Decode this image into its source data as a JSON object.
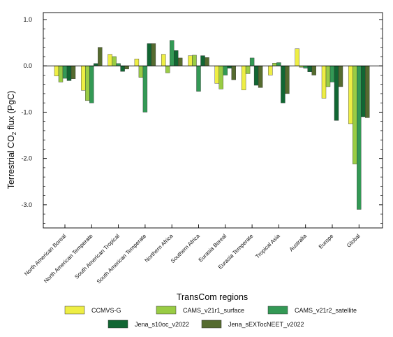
{
  "chart_data": {
    "type": "bar",
    "xlabel": "TransCom regions",
    "ylabel_main": "Terrestrial CO",
    "ylabel_sub": "2",
    "ylabel_tail": " flux (PgC)",
    "ylim": [
      -3.5,
      1.15
    ],
    "yticks": [
      1.0,
      0.0,
      -1.0,
      -2.0,
      -3.0
    ],
    "ytick_labels": [
      "1.0",
      "0.0",
      "-1.0",
      "-2.0",
      "-3.0"
    ],
    "grid": false,
    "legend_position": "bottom",
    "categories": [
      "North American Boreal",
      "North American Temperate",
      "South American Tropical",
      "South American Temperate",
      "Northern Africa",
      "Southern Africa",
      "Eurasia Boreal",
      "Eurasia Temperate",
      "Tropical Asia",
      "Australia",
      "Europe",
      "Global"
    ],
    "series": [
      {
        "name": "CCMVS-G",
        "color": "#eeee44",
        "values": [
          -0.22,
          -0.53,
          0.25,
          0.15,
          0.25,
          0.22,
          -0.38,
          -0.52,
          -0.2,
          0.37,
          -0.7,
          -1.25
        ]
      },
      {
        "name": "CAMS_v21r1_surface",
        "color": "#99cc44",
        "values": [
          -0.35,
          -0.75,
          0.2,
          -0.25,
          -0.15,
          0.23,
          -0.5,
          -0.17,
          0.06,
          -0.03,
          -0.45,
          -2.12
        ]
      },
      {
        "name": "CAMS_v21r2_satellite",
        "color": "#339955",
        "values": [
          -0.27,
          -0.8,
          0.05,
          -1.0,
          0.55,
          -0.55,
          -0.2,
          0.17,
          0.07,
          -0.05,
          -0.35,
          -3.1
        ]
      },
      {
        "name": "Jena_s10oc_v2022",
        "color": "#116633",
        "values": [
          -0.32,
          0.05,
          -0.12,
          0.48,
          0.33,
          0.22,
          -0.05,
          -0.42,
          -0.8,
          -0.13,
          -1.18,
          -1.1
        ]
      },
      {
        "name": "Jena_sEXTocNEET_v2022",
        "color": "#556b2f",
        "values": [
          -0.28,
          0.4,
          -0.07,
          0.48,
          0.17,
          0.18,
          -0.3,
          -0.47,
          -0.6,
          -0.2,
          -0.45,
          -1.12
        ]
      }
    ]
  }
}
